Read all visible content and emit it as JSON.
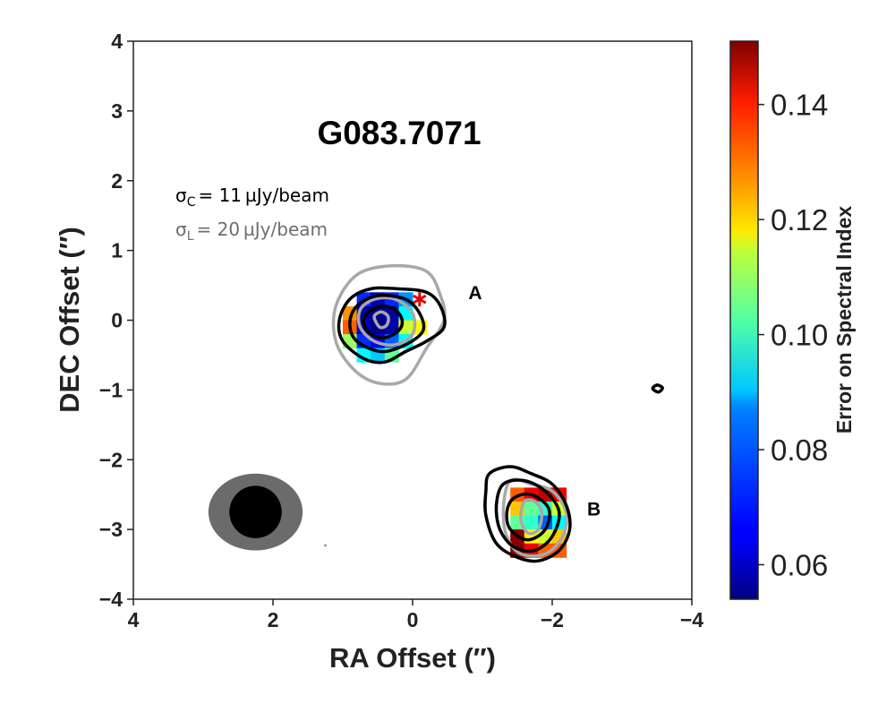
{
  "chart_data": {
    "type": "heatmap",
    "title": "G083.7071",
    "xlabel": "RA Offset (″)",
    "ylabel": "DEC Offset (″)",
    "xlim": [
      4,
      -4
    ],
    "ylim": [
      -4,
      4
    ],
    "x_ticks": [
      4,
      2,
      0,
      -2,
      -4
    ],
    "x_tick_labels": [
      "4",
      "2",
      "0",
      "−2",
      "−4"
    ],
    "y_ticks": [
      4,
      3,
      2,
      1,
      0,
      -1,
      -2,
      -3,
      -4
    ],
    "y_tick_labels": [
      "4",
      "3",
      "2",
      "1",
      "0",
      "−1",
      "−2",
      "−3",
      "−4"
    ],
    "grid": false,
    "colorbar": {
      "label": "Error on Spectral Index",
      "range": [
        0.054,
        0.151
      ],
      "ticks": [
        0.06,
        0.08,
        0.1,
        0.12,
        0.14
      ],
      "tick_labels": [
        "0.06",
        "0.08",
        "0.10",
        "0.12",
        "0.14"
      ],
      "colormap": "jet"
    },
    "annotations": {
      "sigma_c": {
        "symbol": "σ",
        "sub": "C",
        "text": "= 11 µJy/beam",
        "color": "#000000"
      },
      "sigma_l": {
        "symbol": "σ",
        "sub": "L",
        "text": "= 20 µJy/beam",
        "color": "#6e6e6e"
      }
    },
    "sources": [
      {
        "label": "A",
        "x": -0.8,
        "y": 0.3
      },
      {
        "label": "B",
        "x": -2.5,
        "y": -2.8
      }
    ],
    "marker": {
      "symbol": "*",
      "x": -0.1,
      "y": 0.3,
      "color": "#e00000"
    },
    "beams": {
      "center": [
        2.25,
        -2.75
      ],
      "outer": {
        "major": 1.35,
        "minor": 1.1,
        "color": "#6b6b6b"
      },
      "inner": {
        "major": 0.75,
        "minor": 0.75,
        "color": "#000000"
      }
    },
    "pixel_size": 0.2,
    "pixels": [
      [
        0.7,
        0.3,
        0.07
      ],
      [
        0.5,
        0.3,
        0.06
      ],
      [
        0.3,
        0.3,
        0.07
      ],
      [
        0.1,
        0.3,
        0.08
      ],
      [
        0.9,
        0.1,
        0.125
      ],
      [
        0.7,
        0.1,
        0.058
      ],
      [
        0.5,
        0.1,
        0.055
      ],
      [
        0.3,
        0.1,
        0.057
      ],
      [
        0.1,
        0.1,
        0.09
      ],
      [
        0.9,
        -0.1,
        0.13
      ],
      [
        0.7,
        -0.1,
        0.06
      ],
      [
        0.5,
        -0.1,
        0.054
      ],
      [
        0.3,
        -0.1,
        0.058
      ],
      [
        0.1,
        -0.1,
        0.11
      ],
      [
        -0.1,
        -0.1,
        0.115
      ],
      [
        0.9,
        -0.3,
        0.105
      ],
      [
        0.7,
        -0.3,
        0.07
      ],
      [
        0.5,
        -0.3,
        0.065
      ],
      [
        0.3,
        -0.3,
        0.075
      ],
      [
        0.1,
        -0.3,
        0.09
      ],
      [
        0.7,
        -0.5,
        0.09
      ],
      [
        0.5,
        -0.5,
        0.085
      ],
      [
        0.3,
        -0.5,
        0.1
      ],
      [
        -1.5,
        -2.5,
        0.13
      ],
      [
        -1.7,
        -2.5,
        0.14
      ],
      [
        -1.9,
        -2.5,
        0.145
      ],
      [
        -2.1,
        -2.5,
        0.14
      ],
      [
        -1.5,
        -2.7,
        0.12
      ],
      [
        -1.7,
        -2.7,
        0.1
      ],
      [
        -1.9,
        -2.7,
        0.095
      ],
      [
        -2.1,
        -2.7,
        0.11
      ],
      [
        -1.5,
        -2.9,
        0.1
      ],
      [
        -1.7,
        -2.9,
        0.095
      ],
      [
        -1.9,
        -2.9,
        0.075
      ],
      [
        -2.1,
        -2.9,
        0.09
      ],
      [
        -1.5,
        -3.1,
        0.15
      ],
      [
        -1.7,
        -3.1,
        0.115
      ],
      [
        -1.9,
        -3.1,
        0.11
      ],
      [
        -2.1,
        -3.1,
        0.12
      ],
      [
        -1.5,
        -3.3,
        0.15
      ],
      [
        -1.7,
        -3.3,
        0.14
      ],
      [
        -1.9,
        -3.3,
        0.13
      ],
      [
        -2.1,
        -3.3,
        0.13
      ]
    ],
    "contours_c": [
      [
        [
          0.9,
          0.3
        ],
        [
          0.6,
          0.45
        ],
        [
          0.2,
          0.45
        ],
        [
          -0.2,
          0.4
        ],
        [
          -0.4,
          0.2
        ],
        [
          -0.45,
          -0.1
        ],
        [
          -0.2,
          -0.3
        ],
        [
          0.1,
          -0.45
        ],
        [
          0.4,
          -0.6
        ],
        [
          0.7,
          -0.55
        ],
        [
          1.0,
          -0.3
        ],
        [
          1.05,
          0.0
        ]
      ],
      [
        [
          0.8,
          0.2
        ],
        [
          0.5,
          0.35
        ],
        [
          0.1,
          0.3
        ],
        [
          -0.1,
          0.1
        ],
        [
          -0.15,
          -0.15
        ],
        [
          0.1,
          -0.35
        ],
        [
          0.45,
          -0.45
        ],
        [
          0.8,
          -0.3
        ],
        [
          0.9,
          -0.05
        ]
      ],
      [
        [
          0.65,
          0.1
        ],
        [
          0.45,
          0.2
        ],
        [
          0.25,
          0.15
        ],
        [
          0.15,
          0.0
        ],
        [
          0.2,
          -0.15
        ],
        [
          0.4,
          -0.25
        ],
        [
          0.6,
          -0.2
        ],
        [
          0.7,
          -0.05
        ]
      ],
      [
        [
          -1.1,
          -2.2
        ],
        [
          -1.4,
          -2.1
        ],
        [
          -1.7,
          -2.2
        ],
        [
          -2.0,
          -2.35
        ],
        [
          -2.2,
          -2.65
        ],
        [
          -2.25,
          -3.0
        ],
        [
          -2.1,
          -3.3
        ],
        [
          -1.8,
          -3.45
        ],
        [
          -1.5,
          -3.4
        ],
        [
          -1.2,
          -3.2
        ],
        [
          -1.05,
          -2.8
        ],
        [
          -1.05,
          -2.45
        ]
      ],
      [
        [
          -1.3,
          -2.35
        ],
        [
          -1.6,
          -2.3
        ],
        [
          -1.9,
          -2.45
        ],
        [
          -2.1,
          -2.75
        ],
        [
          -2.0,
          -3.1
        ],
        [
          -1.75,
          -3.3
        ],
        [
          -1.45,
          -3.25
        ],
        [
          -1.25,
          -3.0
        ],
        [
          -1.2,
          -2.65
        ]
      ],
      [
        [
          -1.45,
          -2.55
        ],
        [
          -1.7,
          -2.5
        ],
        [
          -1.95,
          -2.7
        ],
        [
          -1.9,
          -3.0
        ],
        [
          -1.65,
          -3.15
        ],
        [
          -1.4,
          -3.0
        ],
        [
          -1.35,
          -2.75
        ]
      ],
      [
        [
          -3.44,
          -0.98
        ],
        [
          -3.5,
          -0.93
        ],
        [
          -3.58,
          -0.97
        ],
        [
          -3.52,
          -1.03
        ]
      ]
    ],
    "contours_l": [
      [
        [
          0.8,
          0.65
        ],
        [
          0.3,
          0.78
        ],
        [
          -0.2,
          0.7
        ],
        [
          -0.4,
          0.35
        ],
        [
          -0.45,
          0.0
        ],
        [
          -0.2,
          -0.4
        ],
        [
          0.1,
          -0.85
        ],
        [
          0.5,
          -0.9
        ],
        [
          0.85,
          -0.7
        ],
        [
          1.1,
          -0.3
        ],
        [
          1.1,
          0.2
        ]
      ],
      [
        [
          0.75,
          0.15
        ],
        [
          0.55,
          0.3
        ],
        [
          0.25,
          0.3
        ],
        [
          0.0,
          0.1
        ],
        [
          0.0,
          -0.2
        ],
        [
          0.25,
          -0.35
        ],
        [
          0.55,
          -0.3
        ],
        [
          0.75,
          -0.1
        ]
      ],
      [
        [
          0.55,
          0.05
        ],
        [
          0.45,
          0.12
        ],
        [
          0.35,
          0.05
        ],
        [
          0.37,
          -0.07
        ],
        [
          0.47,
          -0.1
        ]
      ],
      [
        [
          -1.4,
          -2.3
        ],
        [
          -1.7,
          -2.35
        ],
        [
          -2.0,
          -2.45
        ],
        [
          -2.2,
          -2.75
        ],
        [
          -2.15,
          -3.1
        ],
        [
          -1.9,
          -3.35
        ],
        [
          -1.55,
          -3.35
        ],
        [
          -1.35,
          -3.1
        ],
        [
          -1.3,
          -2.7
        ]
      ],
      [
        [
          -1.6,
          -2.6
        ],
        [
          -1.75,
          -2.6
        ],
        [
          -1.85,
          -2.75
        ],
        [
          -1.8,
          -3.0
        ],
        [
          -1.65,
          -3.05
        ],
        [
          -1.55,
          -2.85
        ]
      ]
    ]
  }
}
